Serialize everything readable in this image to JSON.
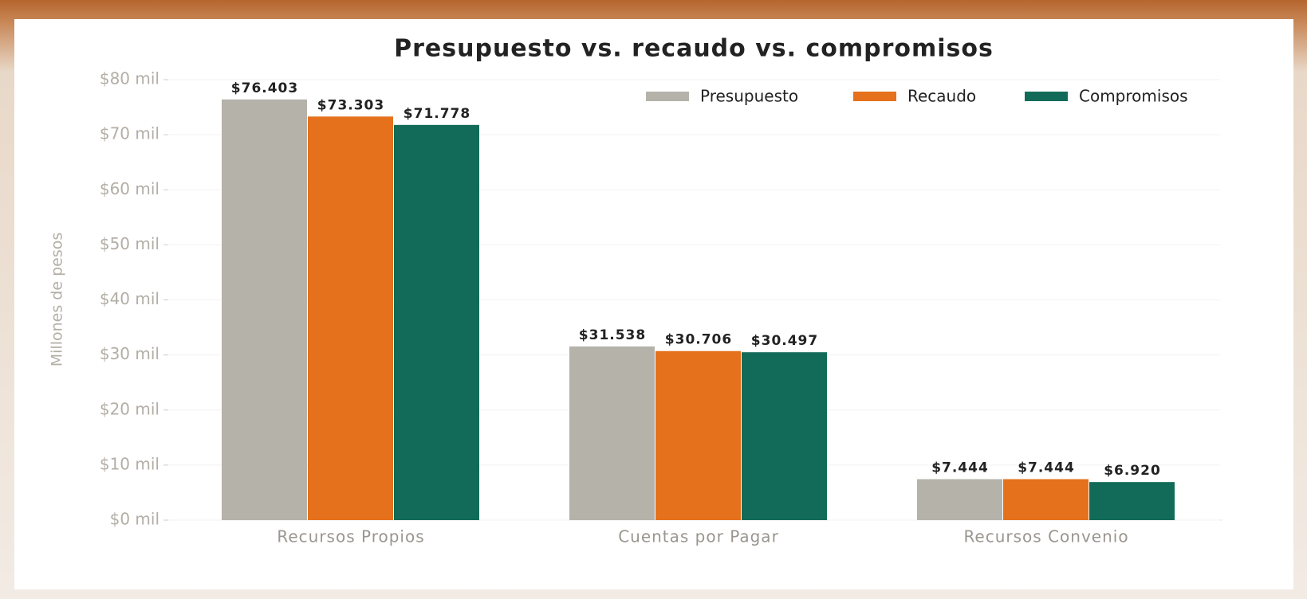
{
  "chart_data": {
    "type": "bar",
    "title": "Presupuesto vs. recaudo vs. compromisos",
    "y_label": "Millones de pesos",
    "categories": [
      "Recursos Propios",
      "Cuentas por Pagar",
      "Recursos Convenio"
    ],
    "series": [
      {
        "name": "Presupuesto",
        "color": "#b5b2aa",
        "values": [
          76403,
          31538,
          7444
        ],
        "value_labels": [
          "$76.403",
          "$31.538",
          "$7.444"
        ]
      },
      {
        "name": "Recaudo",
        "color": "#e5711c",
        "values": [
          73303,
          30706,
          7444
        ],
        "value_labels": [
          "$73.303",
          "$30.706",
          "$7.444"
        ]
      },
      {
        "name": "Compromisos",
        "color": "#126b58",
        "values": [
          71778,
          30497,
          6920
        ],
        "value_labels": [
          "$71.778",
          "$30.497",
          "$6.920"
        ]
      }
    ],
    "ylim": [
      0,
      80000
    ],
    "yticks": [
      {
        "value": 0,
        "label": "$0 mil"
      },
      {
        "value": 10000,
        "label": "$10 mil"
      },
      {
        "value": 20000,
        "label": "$20 mil"
      },
      {
        "value": 30000,
        "label": "$30 mil"
      },
      {
        "value": 40000,
        "label": "$40 mil"
      },
      {
        "value": 50000,
        "label": "$50 mil"
      },
      {
        "value": 60000,
        "label": "$60 mil"
      },
      {
        "value": 70000,
        "label": "$70 mil"
      },
      {
        "value": 80000,
        "label": "$80 mil"
      }
    ],
    "grid": true,
    "legend": "upper right"
  }
}
